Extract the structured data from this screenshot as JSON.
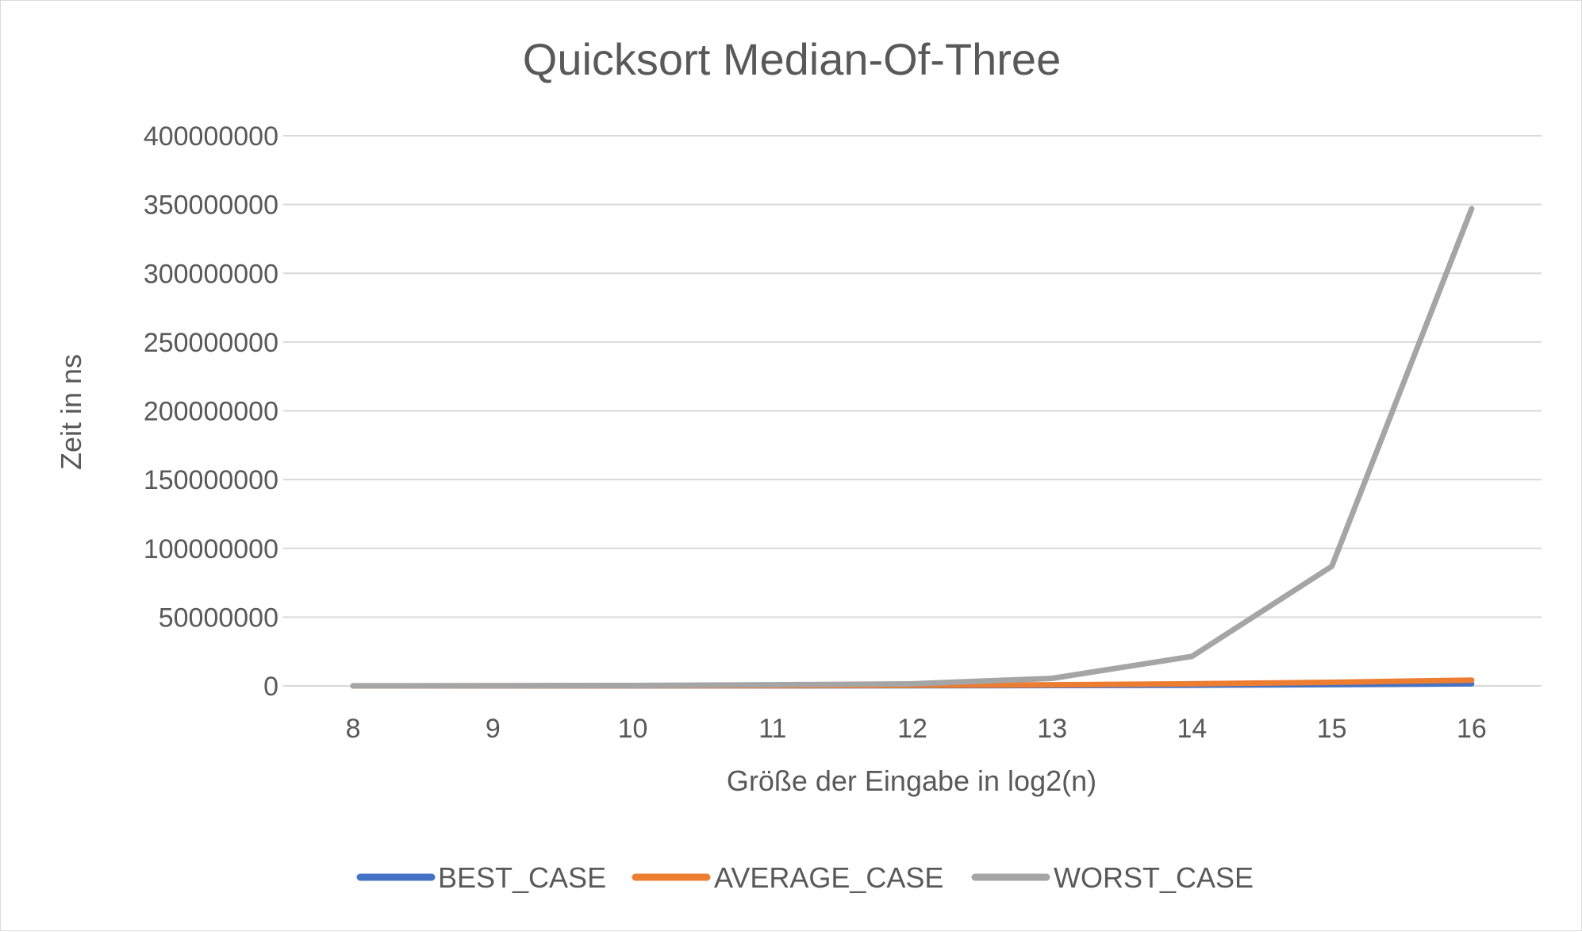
{
  "chart_data": {
    "type": "line",
    "title": "Quicksort Median-Of-Three",
    "xlabel": "Größe der Eingabe in log2(n)",
    "ylabel": "Zeit in ns",
    "categories": [
      "8",
      "9",
      "10",
      "11",
      "12",
      "13",
      "14",
      "15",
      "16"
    ],
    "ylim": [
      0,
      400000000
    ],
    "yticks": [
      "0",
      "50000000",
      "100000000",
      "150000000",
      "200000000",
      "250000000",
      "300000000",
      "350000000",
      "400000000"
    ],
    "grid": true,
    "legend_position": "bottom",
    "series": [
      {
        "name": "BEST_CASE",
        "color": "#4472c4",
        "values": [
          10000,
          20000,
          40000,
          80000,
          150000,
          300000,
          500000,
          900000,
          1500000
        ]
      },
      {
        "name": "AVERAGE_CASE",
        "color": "#ed7d31",
        "values": [
          20000,
          40000,
          90000,
          200000,
          400000,
          800000,
          1500000,
          2600000,
          4200000
        ]
      },
      {
        "name": "WORST_CASE",
        "color": "#a5a5a5",
        "values": [
          50000,
          100000,
          300000,
          800000,
          1500000,
          5500000,
          21500000,
          87000000,
          347000000
        ]
      }
    ]
  }
}
